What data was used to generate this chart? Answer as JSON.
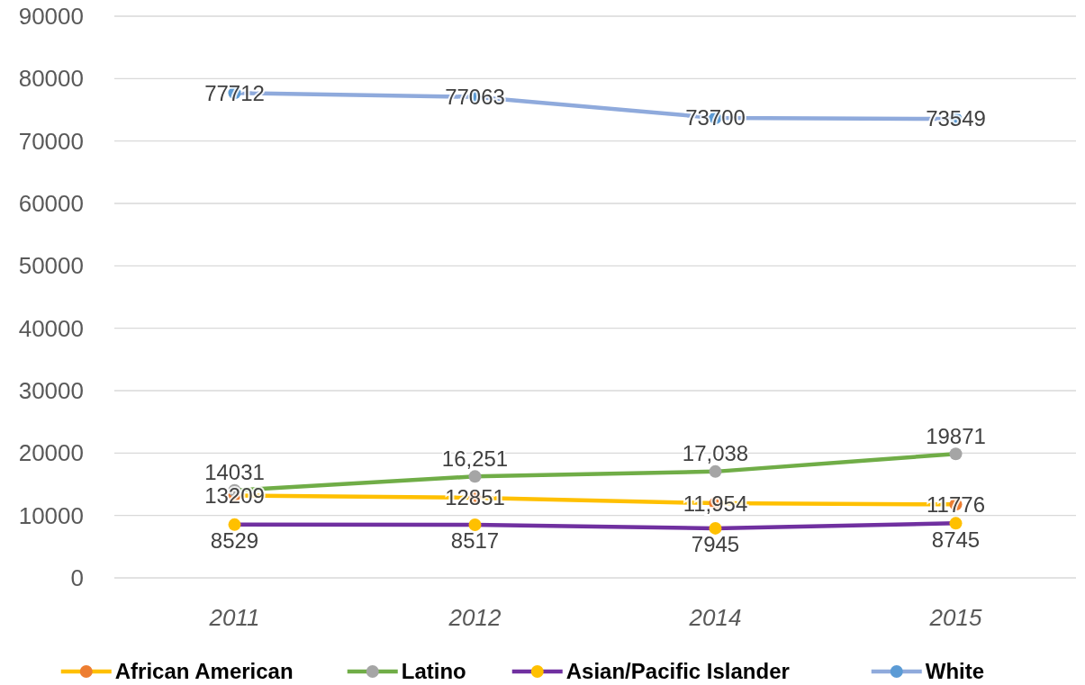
{
  "chart_data": {
    "type": "line",
    "categories": [
      "2011",
      "2012",
      "2014",
      "2015"
    ],
    "ylim": [
      0,
      90000
    ],
    "yticks": [
      0,
      10000,
      20000,
      30000,
      40000,
      50000,
      60000,
      70000,
      80000,
      90000
    ],
    "grid": "y",
    "legend": "bottom",
    "marker": "circle",
    "line_style": "solid",
    "series": [
      {
        "name": "African American",
        "color": "#ffc000",
        "colors": [
          "#ed7d31",
          "#ed7d31",
          "#ed7d31",
          "#ed7d31"
        ],
        "values": [
          13209,
          12851,
          11954,
          11776
        ],
        "value_labels": [
          "13209",
          "12851",
          "11,954",
          "11776"
        ]
      },
      {
        "name": "Latino",
        "color": "#70ad47",
        "colors": [
          "#a5a5a5",
          "#a5a5a5",
          "#a5a5a5",
          "#a5a5a5"
        ],
        "values": [
          14031,
          16251,
          17038,
          19871
        ],
        "value_labels": [
          "14031",
          "16,251",
          "17,038",
          "19871"
        ]
      },
      {
        "name": "Asian/Pacific Islander",
        "color": "#7030a0",
        "colors": [
          "#ffc000",
          "#ffc000",
          "#ffc000",
          "#ffc000"
        ],
        "values": [
          8529,
          8517,
          7945,
          8745
        ],
        "value_labels": [
          "8529",
          "8517",
          "7945",
          "8745"
        ]
      },
      {
        "name": "White",
        "color": "#8faadc",
        "colors": [
          "#5b9bd5",
          "#5b9bd5",
          "#5b9bd5",
          "#5b9bd5"
        ],
        "values": [
          77712,
          77063,
          73700,
          73549
        ],
        "value_labels": [
          "77712",
          "77063",
          "73700",
          "73549"
        ]
      }
    ]
  }
}
